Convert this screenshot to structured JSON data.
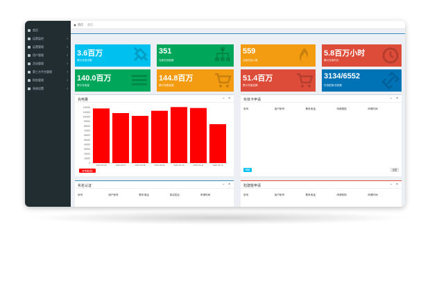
{
  "sidebar": {
    "items": [
      {
        "label": "首页",
        "icon": "home-icon",
        "has_children": false
      },
      {
        "label": "运营监控",
        "icon": "monitor-icon",
        "has_children": true
      },
      {
        "label": "运营管理",
        "icon": "manage-icon",
        "has_children": true
      },
      {
        "label": "用户管理",
        "icon": "user-icon",
        "has_children": true
      },
      {
        "label": "活动管理",
        "icon": "event-icon",
        "has_children": true
      },
      {
        "label": "第三方平台管理",
        "icon": "platform-icon",
        "has_children": true
      },
      {
        "label": "财务管理",
        "icon": "finance-icon",
        "has_children": true
      },
      {
        "label": "系统设置",
        "icon": "gear-icon",
        "has_children": true
      }
    ]
  },
  "topbar": {
    "breadcrumb_home": "首页",
    "active_tab": "首页"
  },
  "tiles": [
    {
      "value": "3.6百万",
      "caption": "累计充电次数",
      "color": "#00c0ef",
      "icon": "plug-icon"
    },
    {
      "value": "351",
      "caption": "当前在线桩数",
      "color": "#00a65a",
      "icon": "network-icon"
    },
    {
      "value": "559",
      "caption": "当前在线人数",
      "color": "#f39c12",
      "icon": "flame-icon"
    },
    {
      "value": "5.8百万小时",
      "caption": "累计充电时长",
      "color": "#dd4b39",
      "icon": "clock-icon"
    },
    {
      "value": "140.0百万",
      "caption": "累计充电量",
      "color": "#00a65a",
      "icon": "list-icon"
    },
    {
      "value": "144.8百万",
      "caption": "累计消费金额",
      "color": "#f39c12",
      "icon": "cart-icon"
    },
    {
      "value": "51.4百万",
      "caption": "累计充值金额",
      "color": "#dd4b39",
      "icon": "cart-icon"
    },
    {
      "value": "3134/6552",
      "caption": "在线桩数/总桩数",
      "color": "#0073b7",
      "icon": "link-icon"
    }
  ],
  "panels": {
    "chart": {
      "title": "充电量",
      "tools": "− ×"
    },
    "card_apply": {
      "title": "实体卡申请",
      "tools": "− ×",
      "columns": [
        "序号",
        "用户帐号",
        "联系电话",
        "申请类型",
        "申请时间"
      ],
      "left_button": "审核",
      "right_button": "全部"
    },
    "realname": {
      "title": "实名认证",
      "tools": "− ×",
      "columns": [
        "序号",
        "用户帐号",
        "联系电话",
        "真实姓名",
        "申请时间"
      ]
    },
    "build_apply": {
      "title": "犯建桩申请",
      "tools": "− ×",
      "columns": [
        "序号",
        "用户帐号",
        "联系电话",
        "申请机构",
        "申请时间"
      ]
    }
  },
  "chart_data": {
    "type": "bar",
    "categories": [
      "2020-03-06",
      "2020-03-07",
      "2020-03-08",
      "2020-03-09",
      "2020-03-10",
      "2020-03-11",
      "2020-03-12"
    ],
    "series": [
      {
        "name": "充电量(度)",
        "values": [
          118000,
          108000,
          102000,
          113000,
          121000,
          119000,
          84000
        ]
      }
    ],
    "ylim": [
      0,
      120000
    ],
    "yticks": [
      0,
      10000,
      20000,
      30000,
      40000,
      50000,
      60000,
      70000,
      80000,
      90000,
      100000,
      110000,
      120000
    ],
    "bar_color": "#ff0000",
    "legend": "bottom-left"
  }
}
